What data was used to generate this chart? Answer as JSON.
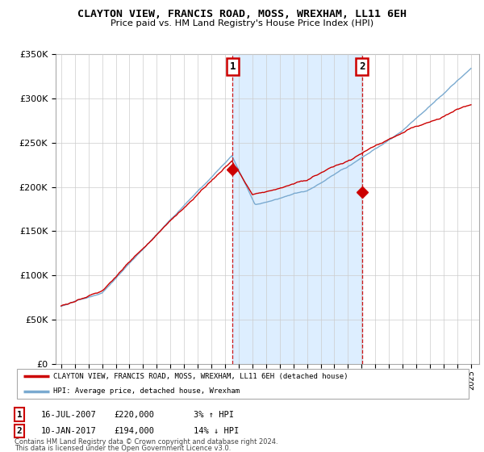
{
  "title": "CLAYTON VIEW, FRANCIS ROAD, MOSS, WREXHAM, LL11 6EH",
  "subtitle": "Price paid vs. HM Land Registry's House Price Index (HPI)",
  "legend_label_red": "CLAYTON VIEW, FRANCIS ROAD, MOSS, WREXHAM, LL11 6EH (detached house)",
  "legend_label_blue": "HPI: Average price, detached house, Wrexham",
  "annotation1_date": "16-JUL-2007",
  "annotation1_price": "£220,000",
  "annotation1_hpi": "3% ↑ HPI",
  "annotation2_date": "10-JAN-2017",
  "annotation2_price": "£194,000",
  "annotation2_hpi": "14% ↓ HPI",
  "footnote1": "Contains HM Land Registry data © Crown copyright and database right 2024.",
  "footnote2": "This data is licensed under the Open Government Licence v3.0.",
  "ylim": [
    0,
    350000
  ],
  "yticks": [
    0,
    50000,
    100000,
    150000,
    200000,
    250000,
    300000,
    350000
  ],
  "ytick_labels": [
    "£0",
    "£50K",
    "£100K",
    "£150K",
    "£200K",
    "£250K",
    "£300K",
    "£350K"
  ],
  "vline1_year": 2007.54,
  "vline2_year": 2017.03,
  "red_color": "#cc0000",
  "blue_color": "#7aaad0",
  "shade_color": "#ddeeff",
  "vline_color": "#cc0000",
  "background_color": "#ffffff",
  "grid_color": "#cccccc",
  "sale1_price": 220000,
  "sale2_price": 194000
}
